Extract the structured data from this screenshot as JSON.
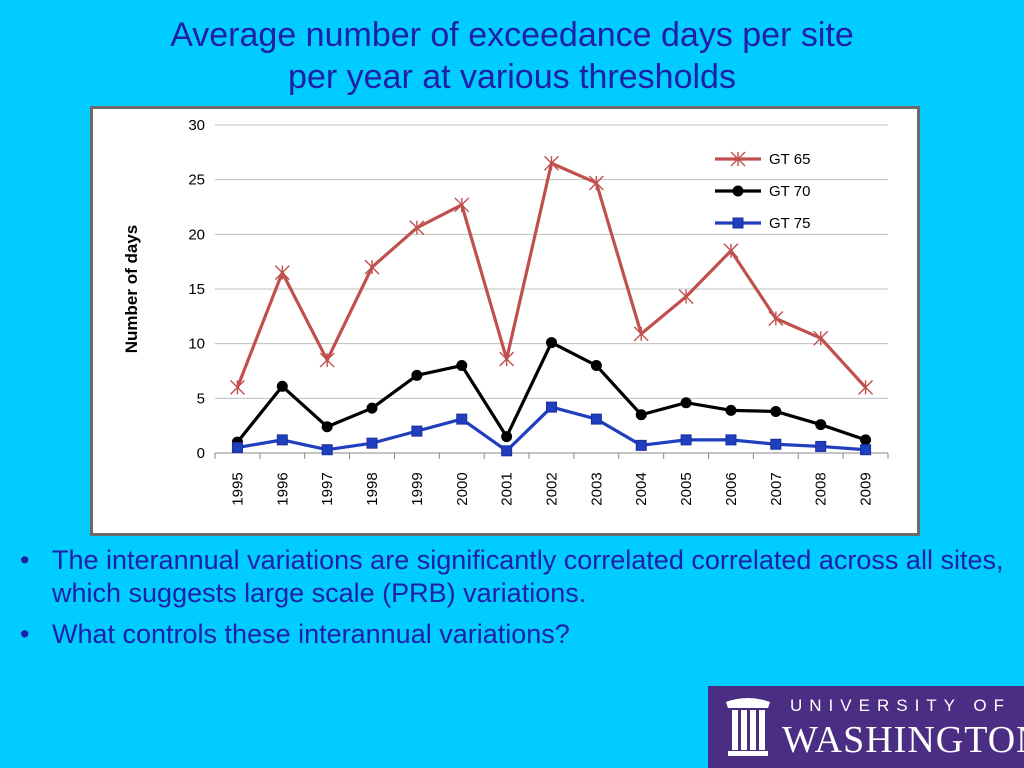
{
  "slide": {
    "title_line1": "Average number of exceedance days per site",
    "title_line2": "per year at various thresholds"
  },
  "bullets": [
    "The interannual variations are significantly correlated correlated across all sites, which  suggests large scale (PRB) variations.",
    "What controls these interannual variations?"
  ],
  "bullet_glyph": "•",
  "logo": {
    "top_text": "UNIVERSITY OF",
    "bottom_text": "WASHINGTON",
    "background": "#4b2e83"
  },
  "chart_data": {
    "type": "line",
    "title": "",
    "xlabel": "",
    "ylabel": "Number of days",
    "categories": [
      "1995",
      "1996",
      "1997",
      "1998",
      "1999",
      "2000",
      "2001",
      "2002",
      "2003",
      "2004",
      "2005",
      "2006",
      "2007",
      "2008",
      "2009"
    ],
    "ylim": [
      0,
      30
    ],
    "yticks": [
      0,
      5,
      10,
      15,
      20,
      25,
      30
    ],
    "grid": "horizontal",
    "legend_position": "top-right",
    "series": [
      {
        "name": "GT 65",
        "color": "#c0504d",
        "marker": "star",
        "values": [
          6,
          16.5,
          8.5,
          17,
          20.6,
          22.7,
          8.6,
          26.5,
          24.7,
          10.9,
          14.3,
          18.5,
          12.3,
          10.5,
          6
        ]
      },
      {
        "name": "GT 70",
        "color": "#000000",
        "marker": "circle",
        "values": [
          1,
          6.1,
          2.4,
          4.1,
          7.1,
          8,
          1.5,
          10.1,
          8,
          3.5,
          4.6,
          3.9,
          3.8,
          2.6,
          1.2
        ]
      },
      {
        "name": "GT 75",
        "color": "#1f3fbf",
        "marker": "square",
        "values": [
          0.5,
          1.2,
          0.3,
          0.9,
          2,
          3.1,
          0.2,
          4.2,
          3.1,
          0.7,
          1.2,
          1.2,
          0.8,
          0.6,
          0.3
        ]
      }
    ]
  }
}
